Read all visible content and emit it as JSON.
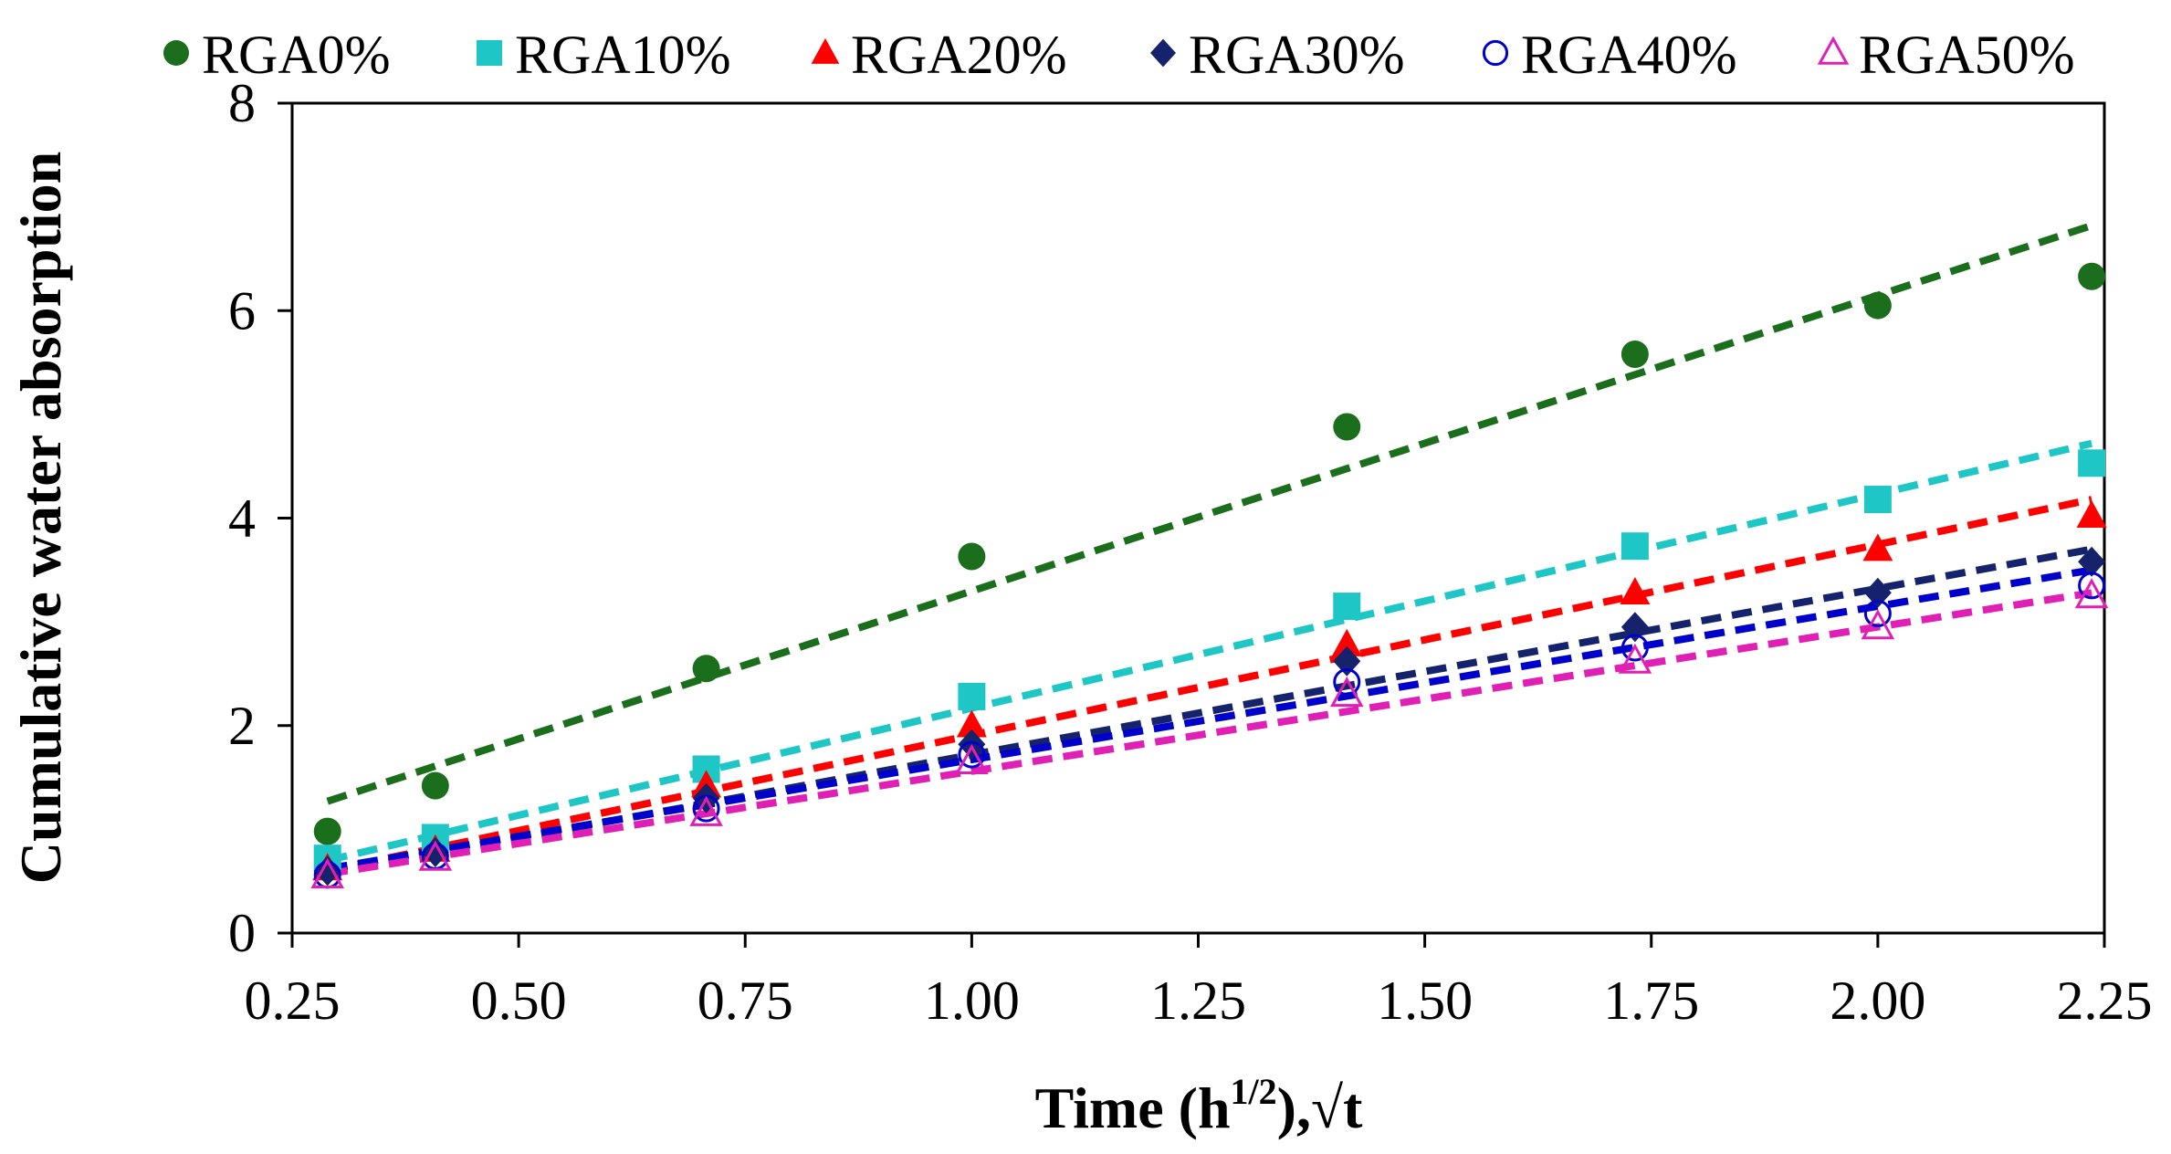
{
  "chart_data": {
    "type": "scatter",
    "title": "",
    "xlabel": {
      "main": "Time (h",
      "sup": "1/2",
      "tail": "),√t"
    },
    "ylabel": "Cumulative water absorption",
    "xlim": [
      0.25,
      2.25
    ],
    "ylim": [
      0,
      8
    ],
    "xticks": [
      "0.25",
      "0.50",
      "0.75",
      "1.00",
      "1.25",
      "1.50",
      "1.75",
      "2.00",
      "2.25"
    ],
    "yticks": [
      "0",
      "2",
      "4",
      "6",
      "8"
    ],
    "legend_position": "top",
    "x": [
      0.289,
      0.408,
      0.707,
      1.0,
      1.414,
      1.732,
      2.0,
      2.236
    ],
    "series": [
      {
        "name": "RGA0%",
        "marker": "circle",
        "color": "#1b6e1b",
        "values": [
          0.98,
          1.42,
          2.55,
          3.63,
          4.88,
          5.58,
          6.05,
          6.33
        ],
        "trend": [
          1.27,
          6.82
        ]
      },
      {
        "name": "RGA10%",
        "marker": "square",
        "color": "#1fc6c6",
        "values": [
          0.72,
          0.92,
          1.58,
          2.28,
          3.15,
          3.73,
          4.18,
          4.53
        ],
        "trend": [
          0.7,
          4.72
        ]
      },
      {
        "name": "RGA20%",
        "marker": "triangle",
        "color": "#ff0000",
        "values": [
          0.62,
          0.8,
          1.42,
          2.0,
          2.78,
          3.28,
          3.7,
          4.02
        ],
        "trend": [
          0.6,
          4.18
        ]
      },
      {
        "name": "RGA30%",
        "marker": "diamond",
        "color": "#14236b",
        "values": [
          0.6,
          0.78,
          1.3,
          1.82,
          2.62,
          2.95,
          3.28,
          3.58
        ],
        "trend": [
          0.58,
          3.7
        ]
      },
      {
        "name": "RGA40%",
        "marker": "open-circle",
        "color": "#0000cc",
        "values": [
          0.56,
          0.74,
          1.2,
          1.72,
          2.42,
          2.75,
          3.08,
          3.35
        ],
        "trend": [
          0.62,
          3.5
        ]
      },
      {
        "name": "RGA50%",
        "marker": "open-triangle",
        "color": "#e020b4",
        "values": [
          0.55,
          0.72,
          1.15,
          1.65,
          2.3,
          2.62,
          2.95,
          3.25
        ],
        "trend": [
          0.57,
          3.28
        ]
      }
    ]
  }
}
